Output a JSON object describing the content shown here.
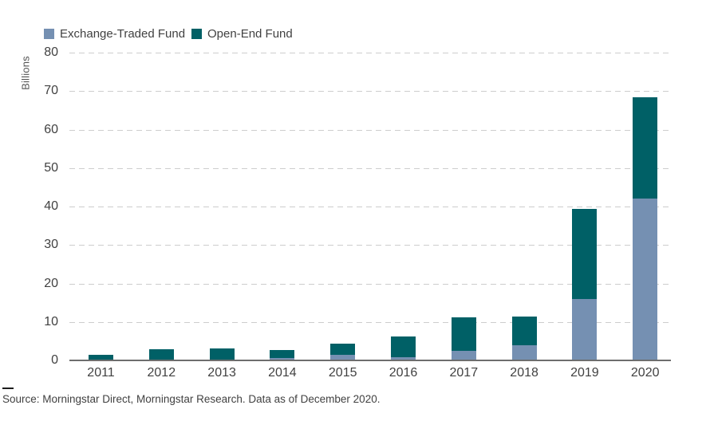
{
  "legend": [
    {
      "label": "Exchange-Traded Fund",
      "color": "#7590b2",
      "swatch_icon": "square-swatch"
    },
    {
      "label": "Open-End Fund",
      "color": "#006066",
      "swatch_icon": "square-swatch"
    }
  ],
  "chart_data": {
    "type": "bar",
    "stacked": true,
    "title": "",
    "xlabel": "",
    "ylabel": "Billions",
    "ylim": [
      0,
      80
    ],
    "yticks": [
      0,
      10,
      20,
      30,
      40,
      50,
      60,
      70,
      80
    ],
    "grid": "horizontal-dashed",
    "legend_position": "top-left",
    "categories": [
      "2011",
      "2012",
      "2013",
      "2014",
      "2015",
      "2016",
      "2017",
      "2018",
      "2019",
      "2020"
    ],
    "series": [
      {
        "name": "Exchange-Traded Fund",
        "color": "#7590b2",
        "values": [
          0.1,
          0.2,
          0.3,
          0.6,
          1.4,
          0.9,
          2.5,
          4.0,
          16.0,
          42.0
        ]
      },
      {
        "name": "Open-End Fund",
        "color": "#006066",
        "values": [
          1.3,
          2.7,
          2.9,
          2.2,
          3.0,
          5.4,
          8.6,
          7.4,
          23.3,
          26.3
        ]
      }
    ]
  },
  "footer": {
    "source_note": "Source: Morningstar Direct, Morningstar Research. Data as of December 2020."
  },
  "colors": {
    "grid": "#cdcdcd",
    "axis": "#6e6e6e",
    "text": "#414141"
  }
}
